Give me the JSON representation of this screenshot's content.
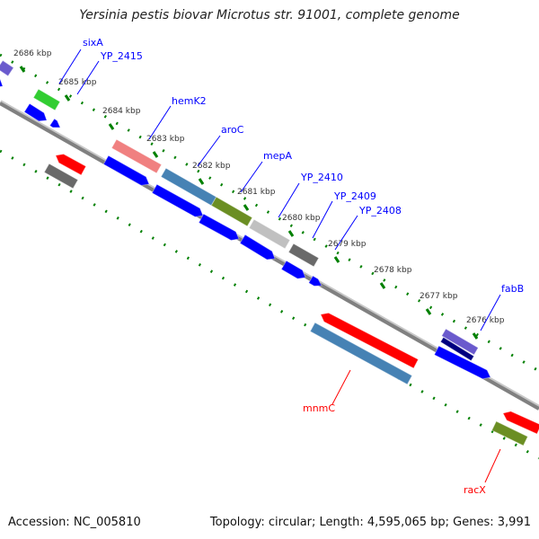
{
  "title": "Yersinia pestis biovar Microtus str. 91001, complete genome",
  "footer": {
    "accession": "Accession: NC_005810",
    "topology": "Topology: circular; Length: 4,595,065 bp; Genes: 3,991"
  },
  "tick_labels": [
    "2686 kbp",
    "2685 kbp",
    "2684 kbp",
    "2683 kbp",
    "2682 kbp",
    "2681 kbp",
    "2680 kbp",
    "2679 kbp",
    "2678 kbp",
    "2677 kbp",
    "2676 kbp"
  ],
  "gene_labels": [
    {
      "label": "sixA",
      "strand": "forward"
    },
    {
      "label": "YP_2415",
      "strand": "forward"
    },
    {
      "label": "hemK2",
      "strand": "forward"
    },
    {
      "label": "aroC",
      "strand": "forward"
    },
    {
      "label": "mepA",
      "strand": "forward"
    },
    {
      "label": "YP_2410",
      "strand": "forward"
    },
    {
      "label": "YP_2409",
      "strand": "forward"
    },
    {
      "label": "YP_2408",
      "strand": "forward"
    },
    {
      "label": "fabB",
      "strand": "forward"
    },
    {
      "label": "mnmC",
      "strand": "reverse"
    },
    {
      "label": "racX",
      "strand": "reverse"
    }
  ],
  "colors": {
    "forward_label": "#0000ff",
    "reverse_label": "#ff0000",
    "cds": "#0000ff",
    "backbone": "#808080",
    "ticks": "#008000"
  }
}
